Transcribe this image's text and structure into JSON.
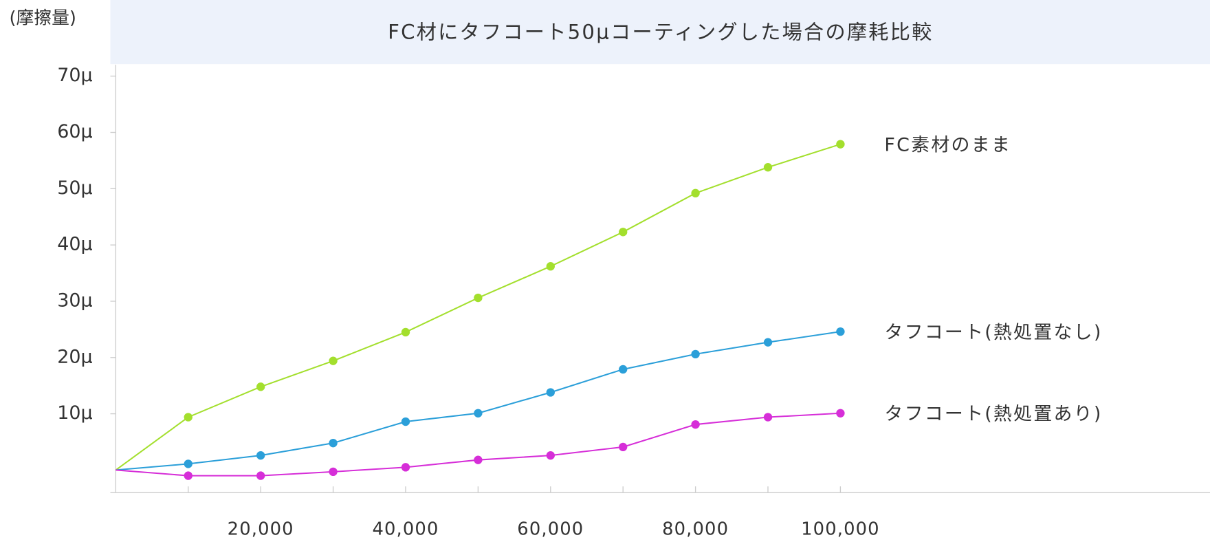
{
  "chart_data": {
    "type": "line",
    "title": "FC材にタフコート50μコーティングした場合の摩耗比較",
    "y_label": "(摩擦量)",
    "x": [
      0,
      10000,
      20000,
      30000,
      40000,
      50000,
      60000,
      70000,
      80000,
      90000,
      100000
    ],
    "series": [
      {
        "name": "FC素材のまま",
        "color": "#a3df2d",
        "values": [
          0,
          9.4,
          14.8,
          19.4,
          24.5,
          30.6,
          36.2,
          42.3,
          49.2,
          53.8,
          57.9
        ]
      },
      {
        "name": "タフコート(熱処置なし)",
        "color": "#2b9fd9",
        "values": [
          0,
          1.1,
          2.6,
          4.8,
          8.6,
          10.1,
          13.8,
          17.9,
          20.6,
          22.7,
          24.6
        ]
      },
      {
        "name": "タフコート(熱処置あり)",
        "color": "#d62ed8",
        "values": [
          0,
          -1,
          -1,
          -0.3,
          0.5,
          1.8,
          2.6,
          4.1,
          8.1,
          9.4,
          10.1
        ]
      }
    ],
    "xlim": [
      0,
      151000
    ],
    "xticks": [
      {
        "value": 20000,
        "label": "20,000"
      },
      {
        "value": 40000,
        "label": "40,000"
      },
      {
        "value": 60000,
        "label": "60,000"
      },
      {
        "value": 80000,
        "label": "80,000"
      },
      {
        "value": 100000,
        "label": "100,000"
      }
    ],
    "x_minor_ticks": [
      10000,
      20000,
      30000,
      40000,
      50000,
      60000,
      70000,
      80000,
      90000,
      100000
    ],
    "ylim": [
      -4,
      72
    ],
    "yticks": [
      {
        "value": 10,
        "label": "10μ"
      },
      {
        "value": 20,
        "label": "20μ"
      },
      {
        "value": 30,
        "label": "30μ"
      },
      {
        "value": 40,
        "label": "40μ"
      },
      {
        "value": 50,
        "label": "50μ"
      },
      {
        "value": 60,
        "label": "60μ"
      },
      {
        "value": 70,
        "label": "70μ"
      }
    ],
    "title_background": "#edf2fb"
  }
}
